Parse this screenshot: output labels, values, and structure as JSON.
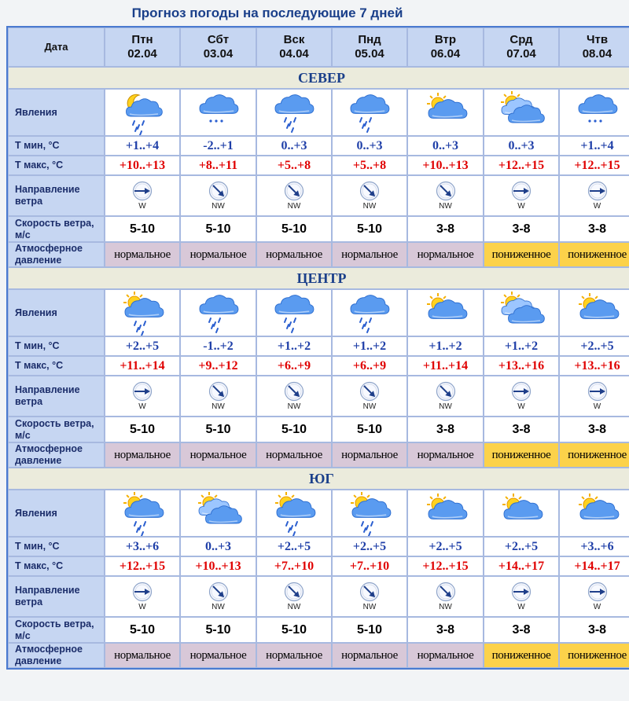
{
  "title": "Прогноз погоды на последующие 7 дней",
  "header": {
    "label": "Дата"
  },
  "days": [
    {
      "dow": "Птн",
      "date": "02.04"
    },
    {
      "dow": "Сбт",
      "date": "03.04"
    },
    {
      "dow": "Вск",
      "date": "04.04"
    },
    {
      "dow": "Пнд",
      "date": "05.04"
    },
    {
      "dow": "Втр",
      "date": "06.04"
    },
    {
      "dow": "Срд",
      "date": "07.04"
    },
    {
      "dow": "Чтв",
      "date": "08.04"
    }
  ],
  "row_labels": {
    "phenomena": "Явления",
    "tmin": "Т мин, °С",
    "tmax": "Т макс, °С",
    "wind_dir": "Направление ветра",
    "wind_speed": "Скорость ветра, м/с",
    "pressure": "Атмосферное давление"
  },
  "regions": [
    {
      "name": "СЕВЕР",
      "icons": [
        "moon-cloud-rain-icon",
        "cloud-snow-icon",
        "cloud-rain-icon",
        "cloud-rain-icon",
        "sun-cloud-icon",
        "sun-clouds-icon",
        "cloud-snow-icon"
      ],
      "tmin": [
        "+1..+4",
        "-2..+1",
        "0..+3",
        "0..+3",
        "0..+3",
        "0..+3",
        "+1..+4"
      ],
      "tmax": [
        "+10..+13",
        "+8..+11",
        "+5..+8",
        "+5..+8",
        "+10..+13",
        "+12..+15",
        "+12..+15"
      ],
      "wind_dir": [
        "W",
        "NW",
        "NW",
        "NW",
        "NW",
        "W",
        "W"
      ],
      "wind_speed": [
        "5-10",
        "5-10",
        "5-10",
        "5-10",
        "3-8",
        "3-8",
        "3-8"
      ],
      "pressure": [
        "нормальное",
        "нормальное",
        "нормальное",
        "нормальное",
        "нормальное",
        "пониженное",
        "пониженное"
      ]
    },
    {
      "name": "ЦЕНТР",
      "icons": [
        "sun-cloud-rain-icon",
        "cloud-rain-icon",
        "cloud-rain-icon",
        "cloud-rain-icon",
        "sun-cloud-icon",
        "sun-clouds-icon",
        "sun-cloud-icon"
      ],
      "tmin": [
        "+2..+5",
        "-1..+2",
        "+1..+2",
        "+1..+2",
        "+1..+2",
        "+1..+2",
        "+2..+5"
      ],
      "tmax": [
        "+11..+14",
        "+9..+12",
        "+6..+9",
        "+6..+9",
        "+11..+14",
        "+13..+16",
        "+13..+16"
      ],
      "wind_dir": [
        "W",
        "NW",
        "NW",
        "NW",
        "NW",
        "W",
        "W"
      ],
      "wind_speed": [
        "5-10",
        "5-10",
        "5-10",
        "5-10",
        "3-8",
        "3-8",
        "3-8"
      ],
      "pressure": [
        "нормальное",
        "нормальное",
        "нормальное",
        "нормальное",
        "нормальное",
        "пониженное",
        "пониженное"
      ]
    },
    {
      "name": "ЮГ",
      "icons": [
        "sun-cloud-rain-icon",
        "sun-clouds-icon",
        "sun-cloud-rain-icon",
        "sun-cloud-rain-icon",
        "sun-cloud-icon",
        "sun-cloud-icon",
        "sun-cloud-icon"
      ],
      "tmin": [
        "+3..+6",
        "0..+3",
        "+2..+5",
        "+2..+5",
        "+2..+5",
        "+2..+5",
        "+3..+6"
      ],
      "tmax": [
        "+12..+15",
        "+10..+13",
        "+7..+10",
        "+7..+10",
        "+12..+15",
        "+14..+17",
        "+14..+17"
      ],
      "wind_dir": [
        "W",
        "NW",
        "NW",
        "NW",
        "NW",
        "W",
        "W"
      ],
      "wind_speed": [
        "5-10",
        "5-10",
        "5-10",
        "5-10",
        "3-8",
        "3-8",
        "3-8"
      ],
      "pressure": [
        "нормальное",
        "нормальное",
        "нормальное",
        "нормальное",
        "нормальное",
        "пониженное",
        "пониженное"
      ]
    }
  ],
  "colors": {
    "frame": "#3f6fc0",
    "label_bg": "#c6d6f2",
    "region_bg": "#ebebdc",
    "tmin": "#1f3fa8",
    "tmax": "#e00000",
    "pressure_normal": "#d8c8d8",
    "pressure_low": "#fcd24a"
  }
}
